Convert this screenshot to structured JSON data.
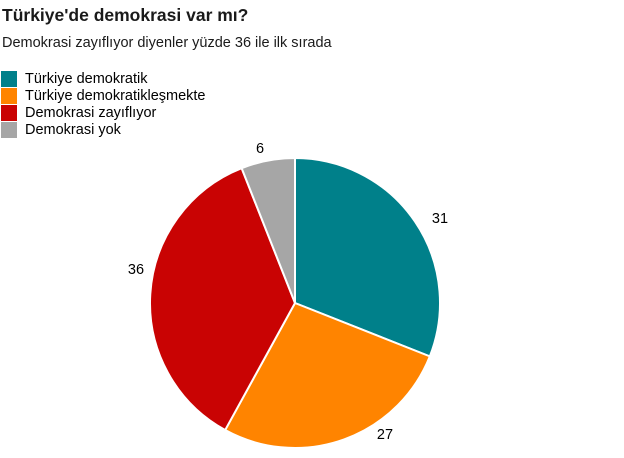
{
  "header": {
    "title": "Türkiye'de demokrasi var mı?",
    "subtitle": "Demokrasi zayıflıyor diyenler yüzde 36 ile ilk sırada"
  },
  "chart_data": {
    "type": "pie",
    "title": "Türkiye'de demokrasi var mı?",
    "subtitle": "Demokrasi zayıflıyor diyenler yüzde 36 ile ilk sırada",
    "unit": "percent",
    "total": 100,
    "start_angle_deg": 0,
    "direction": "clockwise",
    "legend_position": "top-left",
    "separator_color": "#ffffff",
    "slices": [
      {
        "label": "Türkiye demokratik",
        "value": 31,
        "color": "#00808a"
      },
      {
        "label": "Türkiye demokratikleşmekte",
        "value": 27,
        "color": "#ff8400"
      },
      {
        "label": "Demokrasi zayıflıyor",
        "value": 36,
        "color": "#c90303"
      },
      {
        "label": "Demokrasi yok",
        "value": 6,
        "color": "#a6a6a6"
      }
    ]
  }
}
